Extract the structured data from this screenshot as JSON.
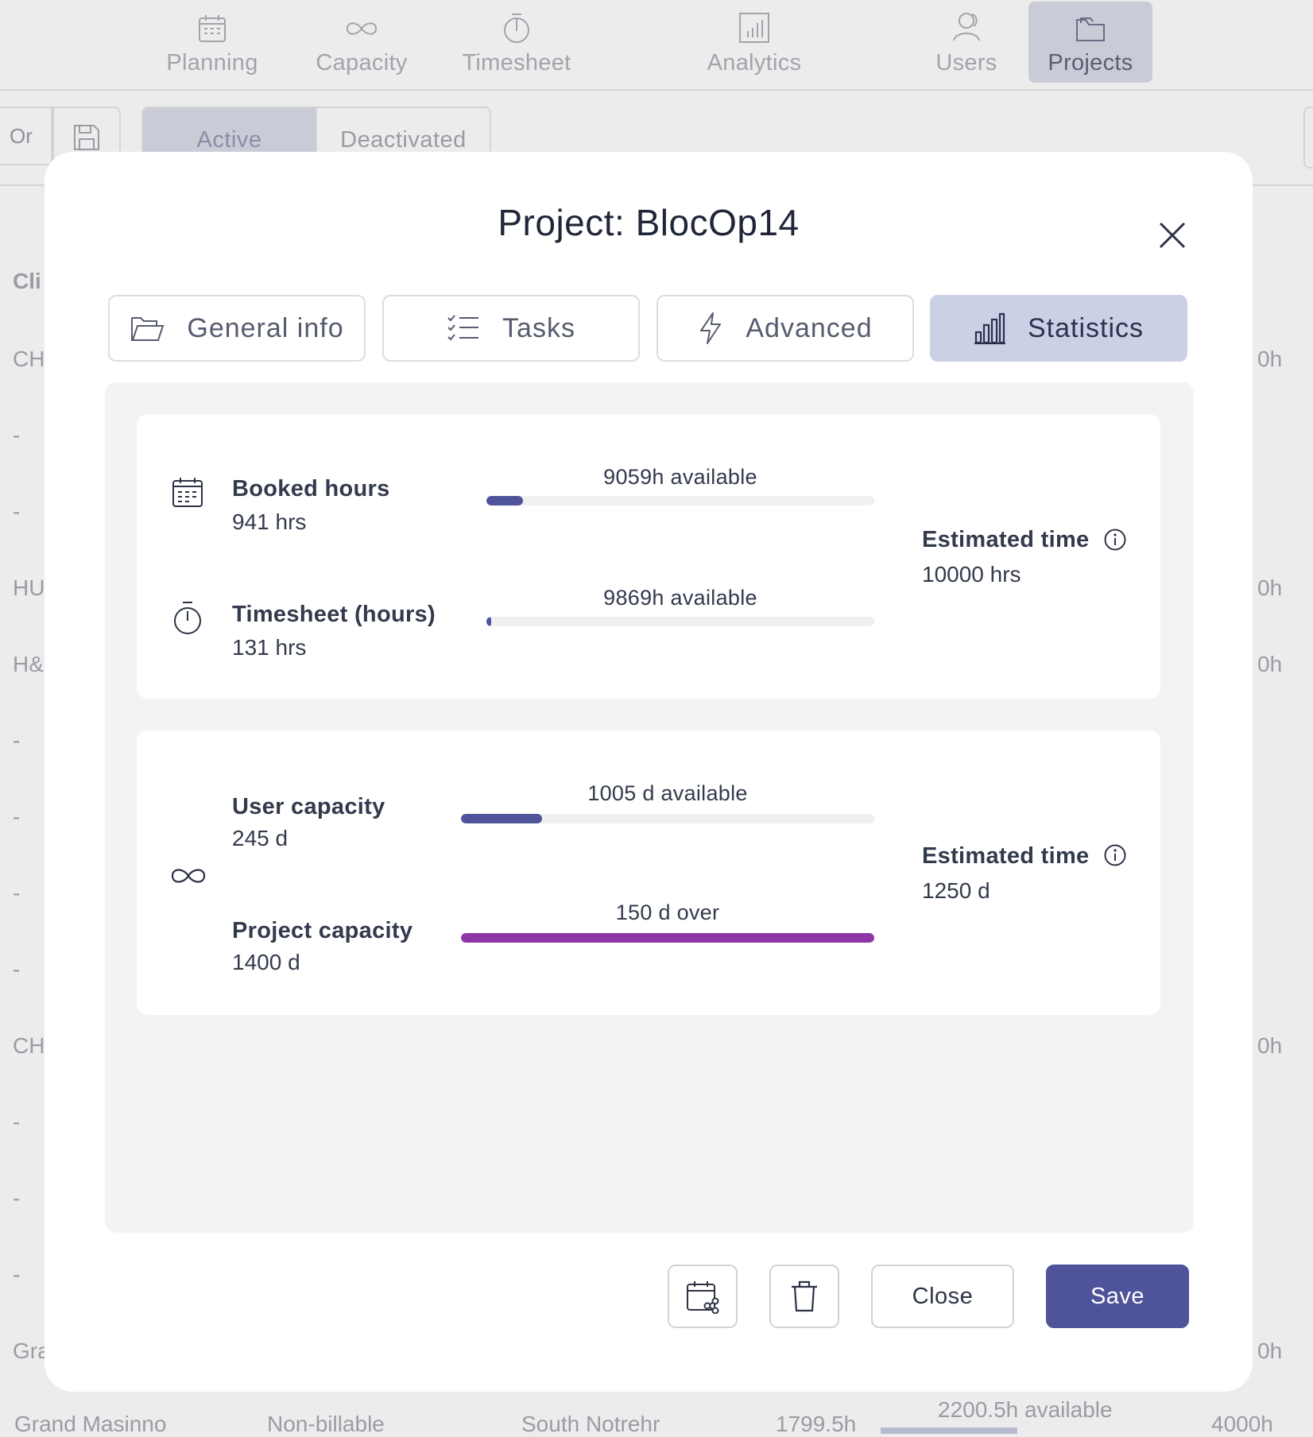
{
  "nav": {
    "items": [
      {
        "label": "Planning",
        "icon": "calendar-icon"
      },
      {
        "label": "Capacity",
        "icon": "infinity-icon"
      },
      {
        "label": "Timesheet",
        "icon": "stopwatch-icon"
      },
      {
        "label": "Analytics",
        "icon": "bar-chart-icon"
      },
      {
        "label": "Users",
        "icon": "users-icon"
      },
      {
        "label": "Projects",
        "icon": "folder-icon"
      }
    ],
    "active": "Projects"
  },
  "toolbar": {
    "or_label": "Or",
    "segments": [
      "Active",
      "Deactivated"
    ],
    "active_segment": "Active"
  },
  "background_rows": {
    "left_fragments": [
      "Cli",
      "CH",
      "-",
      "-",
      "HU",
      "H&",
      "-",
      "-",
      "-",
      "-",
      "CH",
      "-",
      "-",
      "-",
      "Gra"
    ],
    "right_fragments": [
      "0h",
      "0h",
      "0h",
      "0h",
      "0h"
    ],
    "bottom_row": {
      "client": "Grand Masinno",
      "billing": "Non-billable",
      "region": "South Notrehr",
      "booked": "1799.5h",
      "available": "2200.5h available",
      "total": "4000h"
    }
  },
  "modal": {
    "title": "Project: BlocOp14",
    "tabs": [
      {
        "label": "General info",
        "icon": "folder-open-icon"
      },
      {
        "label": "Tasks",
        "icon": "checklist-icon"
      },
      {
        "label": "Advanced",
        "icon": "lightning-icon"
      },
      {
        "label": "Statistics",
        "icon": "bar-chart-icon"
      }
    ],
    "active_tab": "Statistics",
    "hours_card": {
      "booked": {
        "label": "Booked hours",
        "value": "941 hrs",
        "available": "9059h available",
        "fraction": 0.0941
      },
      "timesheet": {
        "label": "Timesheet (hours)",
        "value": "131 hrs",
        "available": "9869h available",
        "fraction": 0.0131
      },
      "estimate": {
        "label": "Estimated time",
        "value": "10000 hrs"
      }
    },
    "capacity_card": {
      "user": {
        "label": "User capacity",
        "value": "245 d",
        "available": "1005 d available",
        "fraction": 0.196
      },
      "project": {
        "label": "Project capacity",
        "value": "1400 d",
        "available": "150 d over",
        "fraction": 1.0
      },
      "estimate": {
        "label": "Estimated time",
        "value": "1250 d"
      }
    },
    "footer": {
      "close_label": "Close",
      "save_label": "Save"
    }
  },
  "colors": {
    "accent": "#4f5399",
    "over_capacity": "#8e35a8",
    "tab_active_bg": "#cbd1e4"
  }
}
